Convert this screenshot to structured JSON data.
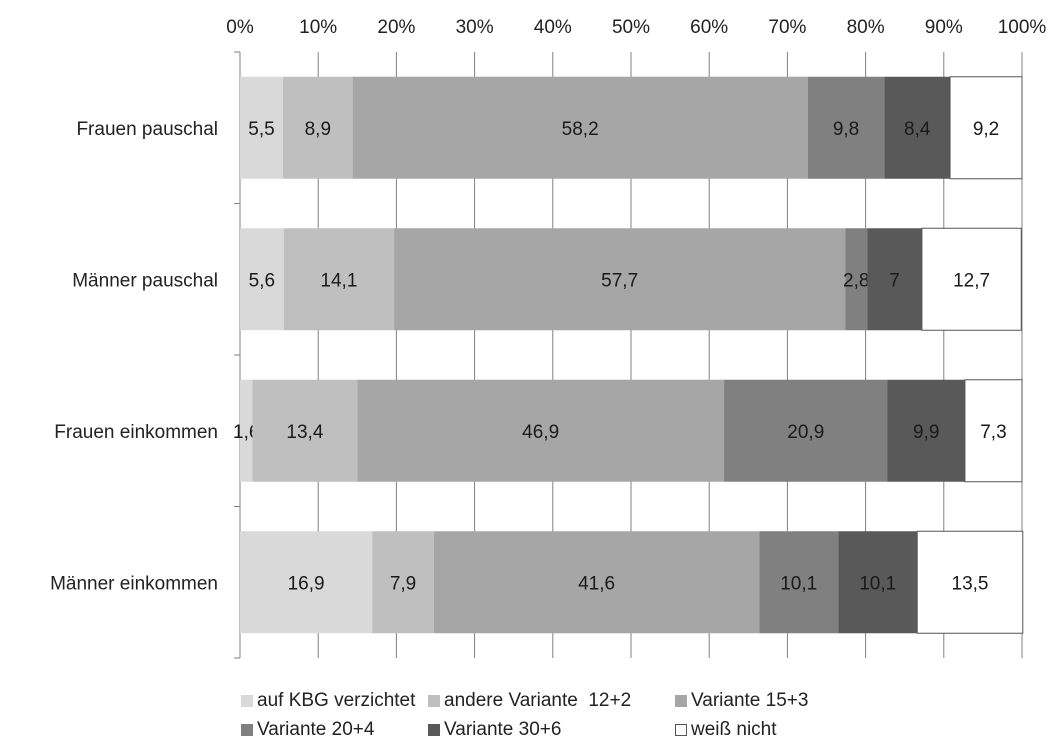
{
  "chart_data": {
    "type": "bar",
    "orientation": "horizontal",
    "stacked": true,
    "title": "",
    "xlabel": "",
    "ylabel": "",
    "xlim": [
      0,
      100
    ],
    "x_ticks": [
      "0%",
      "10%",
      "20%",
      "30%",
      "40%",
      "50%",
      "60%",
      "70%",
      "80%",
      "90%",
      "100%"
    ],
    "categories": [
      "Frauen pauschal",
      "Männer pauschal",
      "Frauen einkommen",
      "Männer einkommen"
    ],
    "series": [
      {
        "name": "auf KBG verzichtet",
        "color": "#d9d9d9",
        "values": [
          5.5,
          5.6,
          1.6,
          16.9
        ],
        "labels": [
          "5,5",
          "5,6",
          "1,6",
          "16,9"
        ]
      },
      {
        "name": "andere Variante  12+2",
        "color": "#bfbfbf",
        "values": [
          8.9,
          14.1,
          13.4,
          7.9
        ],
        "labels": [
          "8,9",
          "14,1",
          "13,4",
          "7,9"
        ]
      },
      {
        "name": "Variante 15+3",
        "color": "#a6a6a6",
        "values": [
          58.2,
          57.7,
          46.9,
          41.6
        ],
        "labels": [
          "58,2",
          "57,7",
          "46,9",
          "41,6"
        ]
      },
      {
        "name": "Variante 20+4",
        "color": "#808080",
        "values": [
          9.8,
          2.8,
          20.9,
          10.1
        ],
        "labels": [
          "9,8",
          "2,8",
          "20,9",
          "10,1"
        ]
      },
      {
        "name": "Variante 30+6",
        "color": "#595959",
        "values": [
          8.4,
          7.0,
          9.9,
          10.1
        ],
        "labels": [
          "8,4",
          "7",
          "9,9",
          "10,1"
        ]
      },
      {
        "name": "weiß nicht",
        "color": "#ffffff",
        "values": [
          9.2,
          12.7,
          7.3,
          13.5
        ],
        "labels": [
          "9,2",
          "12,7",
          "7,3",
          "13,5"
        ]
      }
    ],
    "grid": true,
    "legend_position": "bottom"
  }
}
